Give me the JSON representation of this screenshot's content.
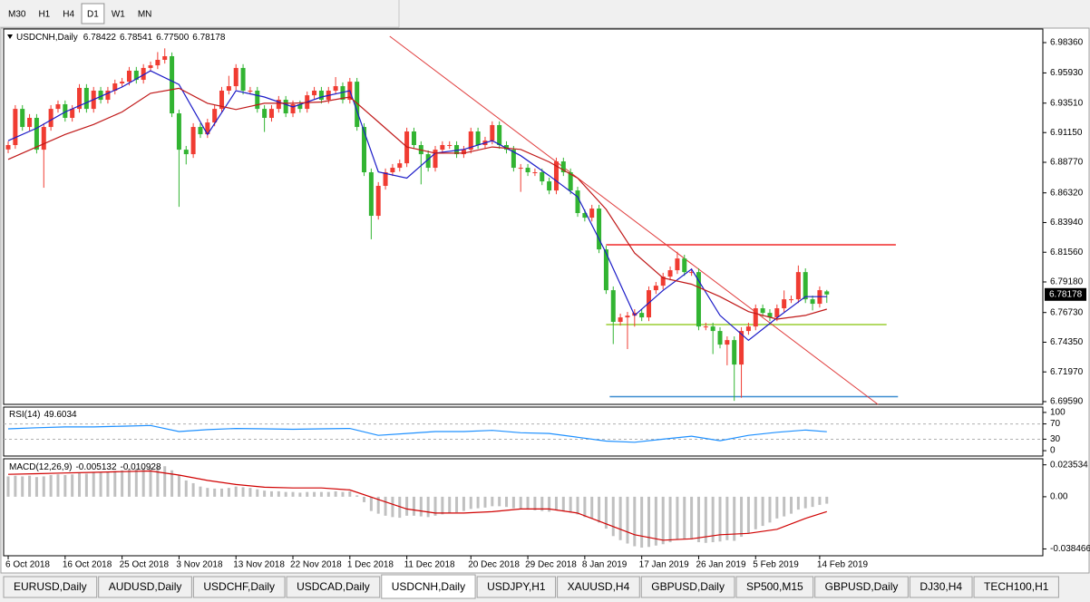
{
  "toolbar": {
    "timeframes": [
      "M30",
      "H1",
      "H4",
      "D1",
      "W1",
      "MN"
    ],
    "active": 3
  },
  "chart_data": [
    {
      "type": "candlestick",
      "title": "USDCNH,Daily",
      "value_labels": {
        "open": "6.78422",
        "high": "6.78541",
        "low": "6.77500",
        "close": "6.78178"
      },
      "up_color": "#f03c32",
      "down_color": "#32b432",
      "grid": false,
      "xlim": [
        -0.64,
        145.35
      ],
      "ylim": [
        6.6937,
        6.9945
      ],
      "xticks": [
        {
          "value": 0,
          "label": "6 Oct 2018"
        },
        {
          "value": 8,
          "label": "16 Oct 2018"
        },
        {
          "value": 16,
          "label": "25 Oct 2018"
        },
        {
          "value": 24,
          "label": "3 Nov 2018"
        },
        {
          "value": 32,
          "label": "13 Nov 2018"
        },
        {
          "value": 40,
          "label": "22 Nov 2018"
        },
        {
          "value": 48,
          "label": "1 Dec 2018"
        },
        {
          "value": 56,
          "label": "11 Dec 2018"
        },
        {
          "value": 65,
          "label": "20 Dec 2018"
        },
        {
          "value": 73,
          "label": "29 Dec 2018"
        },
        {
          "value": 81,
          "label": "8 Jan 2019"
        },
        {
          "value": 89,
          "label": "17 Jan 2019"
        },
        {
          "value": 97,
          "label": "26 Jan 2019"
        },
        {
          "value": 105,
          "label": "5 Feb 2019"
        },
        {
          "value": 114,
          "label": "14 Feb 2019"
        }
      ],
      "yticks": [
        {
          "value": 6.9836,
          "label": "6.98360"
        },
        {
          "value": 6.9593,
          "label": "6.95930"
        },
        {
          "value": 6.9351,
          "label": "6.93510"
        },
        {
          "value": 6.9115,
          "label": "6.91150"
        },
        {
          "value": 6.8877,
          "label": "6.88770"
        },
        {
          "value": 6.8632,
          "label": "6.86320"
        },
        {
          "value": 6.8394,
          "label": "6.83940"
        },
        {
          "value": 6.8156,
          "label": "6.81560"
        },
        {
          "value": 6.7918,
          "label": "6.79180"
        },
        {
          "value": 6.7673,
          "label": "6.76730"
        },
        {
          "value": 6.7435,
          "label": "6.74350"
        },
        {
          "value": 6.7197,
          "label": "6.71970"
        },
        {
          "value": 6.6959,
          "label": "6.69590"
        }
      ],
      "ohlc": {
        "open": [
          6.898,
          6.9015,
          6.9305,
          6.916,
          6.9233,
          6.8978,
          6.916,
          6.9305,
          6.9342,
          6.9233,
          6.9305,
          6.9473,
          6.9305,
          6.9451,
          6.9378,
          6.9451,
          6.9509,
          6.9523,
          6.9611,
          6.9538,
          6.9633,
          6.9654,
          6.9698,
          6.9727,
          6.9269,
          6.8978,
          6.8942,
          6.916,
          6.9102,
          6.9196,
          6.9305,
          6.9451,
          6.9487,
          6.9633,
          6.9451,
          6.9451,
          6.9305,
          6.9233,
          6.9305,
          6.9378,
          6.9269,
          6.9342,
          6.9305,
          6.9414,
          6.9451,
          6.9378,
          6.9451,
          6.9487,
          6.9378,
          6.9523,
          6.916,
          6.8797,
          6.8448,
          6.8688,
          6.8797,
          6.8833,
          6.8869,
          6.9124,
          6.9015,
          6.8942,
          6.8833,
          6.8978,
          6.9015,
          6.9015,
          6.8942,
          6.8978,
          6.9124,
          6.9015,
          6.9051,
          6.9175,
          6.9015,
          6.8978,
          6.8833,
          6.8833,
          6.8797,
          6.8797,
          6.8724,
          6.8651,
          6.8884,
          6.8797,
          6.8651,
          6.847,
          6.8433,
          6.8506,
          6.8179,
          6.7852,
          6.7598,
          6.7634,
          6.7648,
          6.767,
          6.7634,
          6.7852,
          6.7888,
          6.7961,
          6.8012,
          6.8106,
          6.7997,
          6.7997,
          6.7561,
          6.7561,
          6.7525,
          6.7416,
          6.7452,
          6.7256,
          6.7525,
          6.7561,
          6.7707,
          6.767,
          6.7634,
          6.7707,
          6.7779,
          6.7779,
          6.7997,
          6.7779,
          6.7743,
          6.78422
        ],
        "high": [
          6.9045,
          6.9335,
          6.9335,
          6.9263,
          6.9263,
          6.919,
          6.9335,
          6.9372,
          6.9372,
          6.9335,
          6.9503,
          6.9503,
          6.9481,
          6.9481,
          6.9481,
          6.9539,
          6.9553,
          6.9641,
          6.9641,
          6.9663,
          6.9684,
          6.976,
          6.979,
          6.9757,
          6.9299,
          6.9008,
          6.919,
          6.919,
          6.9226,
          6.9335,
          6.9481,
          6.957,
          6.9663,
          6.9663,
          6.9481,
          6.9481,
          6.9335,
          6.9335,
          6.9408,
          6.9408,
          6.9372,
          6.9372,
          6.9444,
          6.9481,
          6.9481,
          6.9481,
          6.956,
          6.9517,
          6.9553,
          6.9553,
          6.919,
          6.8827,
          6.8718,
          6.8827,
          6.8863,
          6.8899,
          6.9154,
          6.9154,
          6.9045,
          6.8972,
          6.9008,
          6.9045,
          6.9045,
          6.9045,
          6.9008,
          6.9154,
          6.9154,
          6.9081,
          6.9205,
          6.9205,
          6.9045,
          6.9008,
          6.8863,
          6.8863,
          6.8827,
          6.8827,
          6.8754,
          6.8914,
          6.8914,
          6.8827,
          6.8681,
          6.85,
          6.8536,
          6.8536,
          6.8209,
          6.7882,
          6.7664,
          6.7678,
          6.77,
          6.77,
          6.7882,
          6.7918,
          6.7991,
          6.8042,
          6.816,
          6.8136,
          6.8027,
          6.8027,
          6.7591,
          6.7591,
          6.7555,
          6.7482,
          6.7482,
          6.7555,
          6.7591,
          6.7737,
          6.7737,
          6.77,
          6.7737,
          6.785,
          6.7809,
          6.805,
          6.8027,
          6.7809,
          6.7882,
          6.78541
        ],
        "low": [
          6.895,
          6.8985,
          6.913,
          6.913,
          6.8948,
          6.8673,
          6.913,
          6.9275,
          6.9203,
          6.9203,
          6.9275,
          6.9275,
          6.9275,
          6.9348,
          6.9348,
          6.9421,
          6.9479,
          6.9493,
          6.9508,
          6.9508,
          6.9603,
          6.9624,
          6.9668,
          6.9239,
          6.852,
          6.886,
          6.8912,
          6.9072,
          6.9072,
          6.9166,
          6.9275,
          6.9421,
          6.9457,
          6.9421,
          6.9421,
          6.9275,
          6.912,
          6.9203,
          6.9275,
          6.9239,
          6.9239,
          6.9275,
          6.9275,
          6.9384,
          6.9348,
          6.9348,
          6.9421,
          6.9348,
          6.9348,
          6.913,
          6.8767,
          6.826,
          6.8418,
          6.8658,
          6.8767,
          6.8803,
          6.8839,
          6.8985,
          6.87,
          6.8803,
          6.8803,
          6.8948,
          6.8985,
          6.8912,
          6.8912,
          6.8948,
          6.8985,
          6.8985,
          6.9021,
          6.8985,
          6.8948,
          6.8803,
          6.864,
          6.8767,
          6.8767,
          6.8694,
          6.8621,
          6.8621,
          6.8767,
          6.8621,
          6.844,
          6.8403,
          6.8403,
          6.8149,
          6.7822,
          6.742,
          6.7568,
          6.738,
          6.756,
          6.7604,
          6.7604,
          6.7822,
          6.7858,
          6.7931,
          6.7982,
          6.7967,
          6.7967,
          6.7531,
          6.7531,
          6.734,
          6.7386,
          6.725,
          6.6965,
          6.699,
          6.7495,
          6.7531,
          6.764,
          6.7604,
          6.7604,
          6.7677,
          6.7749,
          6.7749,
          6.7749,
          6.769,
          6.7713,
          6.775
        ],
        "close": [
          6.9015,
          6.9305,
          6.916,
          6.9233,
          6.8978,
          6.916,
          6.9305,
          6.9342,
          6.9233,
          6.9305,
          6.9473,
          6.9305,
          6.9451,
          6.9378,
          6.9451,
          6.9509,
          6.9523,
          6.9611,
          6.9538,
          6.9633,
          6.9654,
          6.9698,
          6.9727,
          6.9269,
          6.8978,
          6.8942,
          6.916,
          6.9102,
          6.9196,
          6.9305,
          6.9451,
          6.9487,
          6.9633,
          6.9451,
          6.9451,
          6.9305,
          6.9233,
          6.9305,
          6.9378,
          6.9269,
          6.9342,
          6.9305,
          6.9414,
          6.9451,
          6.9378,
          6.9451,
          6.9487,
          6.9378,
          6.9523,
          6.916,
          6.8797,
          6.8448,
          6.8688,
          6.8797,
          6.8833,
          6.8869,
          6.9124,
          6.9015,
          6.8942,
          6.8833,
          6.8978,
          6.9015,
          6.9015,
          6.8942,
          6.8978,
          6.9124,
          6.9015,
          6.9051,
          6.9175,
          6.9015,
          6.8978,
          6.8833,
          6.8833,
          6.8797,
          6.8797,
          6.8724,
          6.8651,
          6.8884,
          6.8797,
          6.8651,
          6.847,
          6.8433,
          6.8506,
          6.8179,
          6.7852,
          6.7598,
          6.7634,
          6.7648,
          6.767,
          6.7634,
          6.7852,
          6.7888,
          6.7961,
          6.8012,
          6.8106,
          6.7997,
          6.7997,
          6.7561,
          6.7561,
          6.7525,
          6.7416,
          6.7452,
          6.7256,
          6.7525,
          6.7561,
          6.7707,
          6.767,
          6.7634,
          6.7707,
          6.7779,
          6.7779,
          6.7997,
          6.7779,
          6.7743,
          6.7852,
          6.78178
        ]
      },
      "series": [
        {
          "type": "line",
          "color": "#1c1cc8",
          "x": [
            0,
            4,
            8,
            12,
            16,
            20,
            24,
            28,
            32,
            36,
            40,
            44,
            48,
            52,
            56,
            60,
            64,
            68,
            72,
            76,
            80,
            84,
            88,
            92,
            96,
            100,
            104,
            108,
            112,
            115
          ],
          "values": [
            6.905,
            6.915,
            6.928,
            6.938,
            6.948,
            6.961,
            6.95,
            6.91,
            6.945,
            6.94,
            6.932,
            6.94,
            6.945,
            6.88,
            6.875,
            6.895,
            6.898,
            6.905,
            6.893,
            6.877,
            6.86,
            6.815,
            6.765,
            6.785,
            6.802,
            6.765,
            6.745,
            6.763,
            6.78,
            6.78
          ]
        },
        {
          "type": "line",
          "color": "#c01818",
          "x": [
            0,
            4,
            8,
            12,
            16,
            20,
            24,
            28,
            32,
            36,
            40,
            44,
            48,
            52,
            56,
            60,
            64,
            68,
            72,
            76,
            80,
            84,
            88,
            92,
            96,
            100,
            104,
            108,
            112,
            115
          ],
          "values": [
            6.89,
            6.9,
            6.91,
            6.918,
            6.928,
            6.943,
            6.947,
            6.935,
            6.93,
            6.935,
            6.935,
            6.936,
            6.94,
            6.92,
            6.9,
            6.895,
            6.895,
            6.9,
            6.898,
            6.888,
            6.875,
            6.85,
            6.815,
            6.795,
            6.79,
            6.78,
            6.768,
            6.762,
            6.765,
            6.77
          ]
        }
      ],
      "levels": [
        {
          "value": 6.8216,
          "color": "#f02828",
          "x": [
            84,
            124.7
          ]
        },
        {
          "value": 6.7576,
          "color": "#9acd32",
          "x": [
            84,
            123.4
          ]
        },
        {
          "value": 6.6999,
          "color": "#3c8cd0",
          "x": [
            84.5,
            125
          ]
        }
      ],
      "trendline": {
        "color": "#e03c3c",
        "x": [
          53.6,
          122.2
        ],
        "values": [
          6.9887,
          6.6936
        ]
      }
    },
    {
      "type": "line",
      "title": "RSI(14)",
      "xlim": [
        -0.64,
        145.35
      ],
      "ylim": [
        -14,
        114
      ],
      "yticks": [
        100,
        70,
        30,
        0
      ],
      "levels": [
        70,
        30
      ],
      "series": [
        {
          "type": "line",
          "color": "#1e90ff",
          "x": [
            0,
            4,
            8,
            12,
            16,
            20,
            24,
            28,
            32,
            36,
            40,
            44,
            48,
            52,
            56,
            60,
            64,
            68,
            72,
            76,
            80,
            84,
            88,
            92,
            96,
            100,
            104,
            108,
            112,
            115
          ],
          "values": [
            57,
            60,
            62,
            62,
            64,
            66,
            50,
            55,
            58,
            57,
            56,
            57,
            58,
            40,
            45,
            50,
            50,
            53,
            47,
            45,
            35,
            25,
            22,
            30,
            38,
            26,
            40,
            48,
            54,
            49.6034
          ]
        }
      ]
    },
    {
      "type": "bar",
      "title": "MACD(12,26,9)",
      "xlim": [
        -0.64,
        145.35
      ],
      "ylim": [
        -0.0435,
        0.028
      ],
      "yticks": [
        0.023534,
        {
          "value": 0,
          "label": "0.00"
        },
        -0.038466
      ],
      "series": [
        {
          "type": "bar",
          "color": "#c0c0c0",
          "values": [
            0.015,
            0.0155,
            0.015,
            0.0155,
            0.0145,
            0.015,
            0.016,
            0.0165,
            0.016,
            0.0165,
            0.0175,
            0.017,
            0.018,
            0.018,
            0.0185,
            0.019,
            0.0195,
            0.0205,
            0.0205,
            0.021,
            0.0215,
            0.022,
            0.0225,
            0.0195,
            0.016,
            0.012,
            0.01,
            0.0075,
            0.0065,
            0.006,
            0.006,
            0.0065,
            0.0075,
            0.007,
            0.0065,
            0.0055,
            0.0045,
            0.004,
            0.004,
            0.0035,
            0.0035,
            0.003,
            0.0035,
            0.0035,
            0.0035,
            0.0035,
            0.004,
            0.0035,
            0.004,
            0.001,
            -0.004,
            -0.0105,
            -0.0125,
            -0.014,
            -0.015,
            -0.0155,
            -0.014,
            -0.014,
            -0.0145,
            -0.015,
            -0.014,
            -0.013,
            -0.012,
            -0.0115,
            -0.0105,
            -0.009,
            -0.0085,
            -0.008,
            -0.007,
            -0.007,
            -0.0075,
            -0.0085,
            -0.009,
            -0.0095,
            -0.01,
            -0.0105,
            -0.011,
            -0.01,
            -0.0105,
            -0.0115,
            -0.013,
            -0.015,
            -0.016,
            -0.019,
            -0.0235,
            -0.029,
            -0.032,
            -0.0345,
            -0.0365,
            -0.0375,
            -0.037,
            -0.036,
            -0.035,
            -0.0335,
            -0.0315,
            -0.031,
            -0.0315,
            -0.0335,
            -0.034,
            -0.0335,
            -0.033,
            -0.032,
            -0.0325,
            -0.0295,
            -0.027,
            -0.024,
            -0.0215,
            -0.019,
            -0.016,
            -0.0145,
            -0.0125,
            -0.0095,
            -0.0085,
            -0.0075,
            -0.006,
            -0.005132
          ]
        },
        {
          "type": "line",
          "color": "#d00000",
          "x": [
            0,
            4,
            8,
            12,
            16,
            20,
            24,
            28,
            32,
            36,
            40,
            44,
            48,
            52,
            56,
            60,
            64,
            68,
            72,
            76,
            80,
            84,
            88,
            92,
            96,
            100,
            104,
            108,
            112,
            115
          ],
          "values": [
            0.0165,
            0.017,
            0.0175,
            0.018,
            0.0185,
            0.019,
            0.016,
            0.012,
            0.009,
            0.007,
            0.0065,
            0.0065,
            0.005,
            -0.002,
            -0.009,
            -0.012,
            -0.012,
            -0.011,
            -0.009,
            -0.009,
            -0.012,
            -0.02,
            -0.028,
            -0.032,
            -0.031,
            -0.028,
            -0.027,
            -0.024,
            -0.016,
            -0.010928
          ]
        }
      ]
    }
  ],
  "tabs": {
    "items": [
      "EURUSD,Daily",
      "AUDUSD,Daily",
      "USDCHF,Daily",
      "USDCAD,Daily",
      "USDCNH,Daily",
      "USDJPY,H1",
      "XAUUSD,H4",
      "GBPUSD,Daily",
      "SP500,M15",
      "GBPUSD,Daily",
      "DJ30,H4",
      "TECH100,H1"
    ],
    "active": 4
  }
}
